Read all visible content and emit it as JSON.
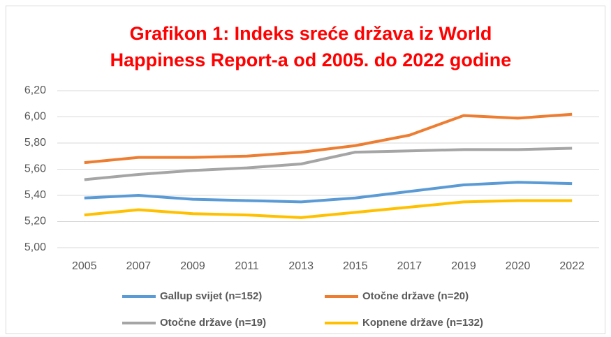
{
  "chart_data": {
    "type": "line",
    "title": [
      "Grafikon 1: Indeks sreće država iz World",
      "Happiness Report-a od 2005. do 2022 godine"
    ],
    "categories": [
      "2005",
      "2007",
      "2009",
      "2011",
      "2013",
      "2015",
      "2017",
      "2019",
      "2020",
      "2022"
    ],
    "series": [
      {
        "name": "Gallup svijet (n=152)",
        "color": "#5b9bd5",
        "values": [
          5.38,
          5.4,
          5.37,
          5.36,
          5.35,
          5.38,
          5.43,
          5.48,
          5.5,
          5.49
        ]
      },
      {
        "name": "Otočne države (n=20)",
        "color": "#ed7d31",
        "values": [
          5.65,
          5.69,
          5.69,
          5.7,
          5.73,
          5.78,
          5.86,
          6.01,
          5.99,
          6.02
        ]
      },
      {
        "name": "Otočne države (n=19)",
        "color": "#a5a5a5",
        "values": [
          5.52,
          5.56,
          5.59,
          5.61,
          5.64,
          5.73,
          5.74,
          5.75,
          5.75,
          5.76
        ]
      },
      {
        "name": "Kopnene države (n=132)",
        "color": "#ffc000",
        "values": [
          5.25,
          5.29,
          5.26,
          5.25,
          5.23,
          5.27,
          5.31,
          5.35,
          5.36,
          5.36
        ]
      }
    ],
    "ylim": [
      5.0,
      6.2
    ],
    "yticks": [
      {
        "value": 5.0,
        "label": "5,00"
      },
      {
        "value": 5.2,
        "label": "5,20"
      },
      {
        "value": 5.4,
        "label": "5,40"
      },
      {
        "value": 5.6,
        "label": "5,60"
      },
      {
        "value": 5.8,
        "label": "5,80"
      },
      {
        "value": 6.0,
        "label": "6,00"
      },
      {
        "value": 6.2,
        "label": "6,20"
      }
    ],
    "grid": true,
    "legend": "bottom"
  }
}
